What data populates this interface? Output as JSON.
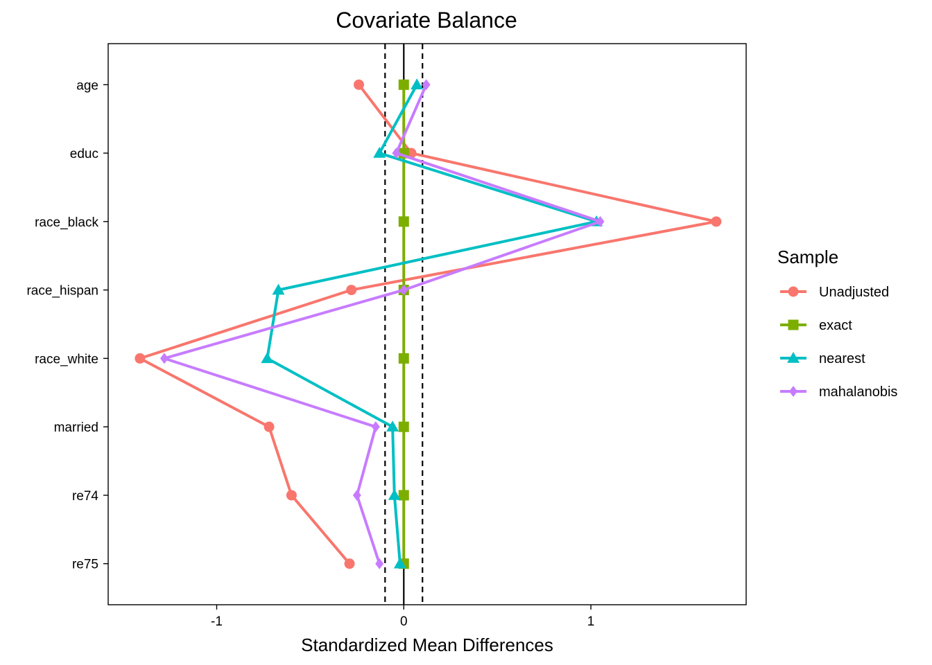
{
  "chart_data": {
    "type": "line",
    "title": "Covariate Balance",
    "xlabel": "Standardized Mean Differences",
    "ylabel": "",
    "xlim": [
      -1.58,
      1.83
    ],
    "x_ticks": [
      -1,
      0,
      1
    ],
    "x_tick_labels": [
      "-1",
      "0",
      "1"
    ],
    "threshold_lines": [
      -0.1,
      0.1
    ],
    "reference_line": 0,
    "categories": [
      "age",
      "educ",
      "race_black",
      "race_hispan",
      "race_white",
      "married",
      "re74",
      "re75"
    ],
    "legend_title": "Sample",
    "legend_position": "right",
    "grid": false,
    "series": [
      {
        "name": "Unadjusted",
        "color": "#F8766D",
        "marker": "circle",
        "values": [
          -0.24,
          0.04,
          1.67,
          -0.28,
          -1.41,
          -0.72,
          -0.6,
          -0.29
        ]
      },
      {
        "name": "exact",
        "color": "#7CAE00",
        "marker": "square",
        "values": [
          0,
          0,
          0,
          0,
          0,
          0,
          0,
          0
        ]
      },
      {
        "name": "nearest",
        "color": "#00BFC4",
        "marker": "triangle",
        "values": [
          0.07,
          -0.13,
          1.03,
          -0.67,
          -0.73,
          -0.06,
          -0.05,
          -0.02
        ]
      },
      {
        "name": "mahalanobis",
        "color": "#C77CFF",
        "marker": "diamond",
        "values": [
          0.12,
          -0.04,
          1.05,
          0.0,
          -1.28,
          -0.15,
          -0.25,
          -0.13
        ]
      }
    ]
  }
}
